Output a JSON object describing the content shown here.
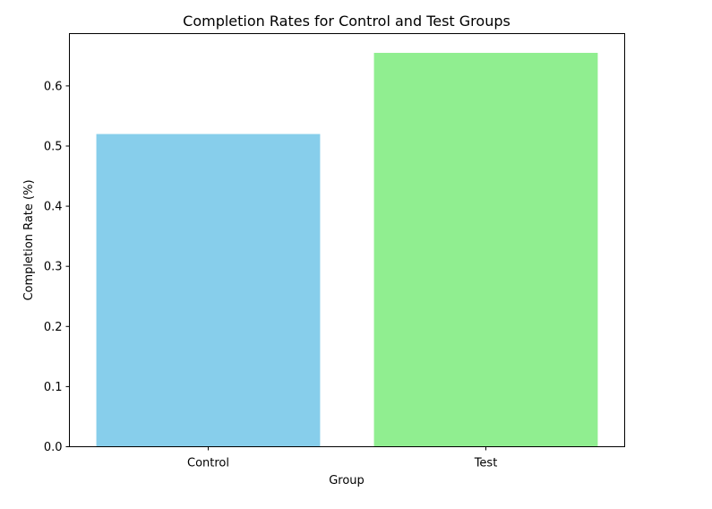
{
  "chart_data": {
    "type": "bar",
    "title": "Completion Rates for Control and Test Groups",
    "xlabel": "Group",
    "ylabel": "Completion Rate (%)",
    "categories": [
      "Control",
      "Test"
    ],
    "values": [
      0.52,
      0.655
    ],
    "colors": [
      "#87ceeb",
      "#90ee90"
    ],
    "ylim": [
      0,
      0.687
    ],
    "yticks": [
      0.0,
      0.1,
      0.2,
      0.3,
      0.4,
      0.5,
      0.6
    ],
    "ytick_labels": [
      "0.0",
      "0.1",
      "0.2",
      "0.3",
      "0.4",
      "0.5",
      "0.6"
    ],
    "grid": false,
    "legend": "none"
  }
}
